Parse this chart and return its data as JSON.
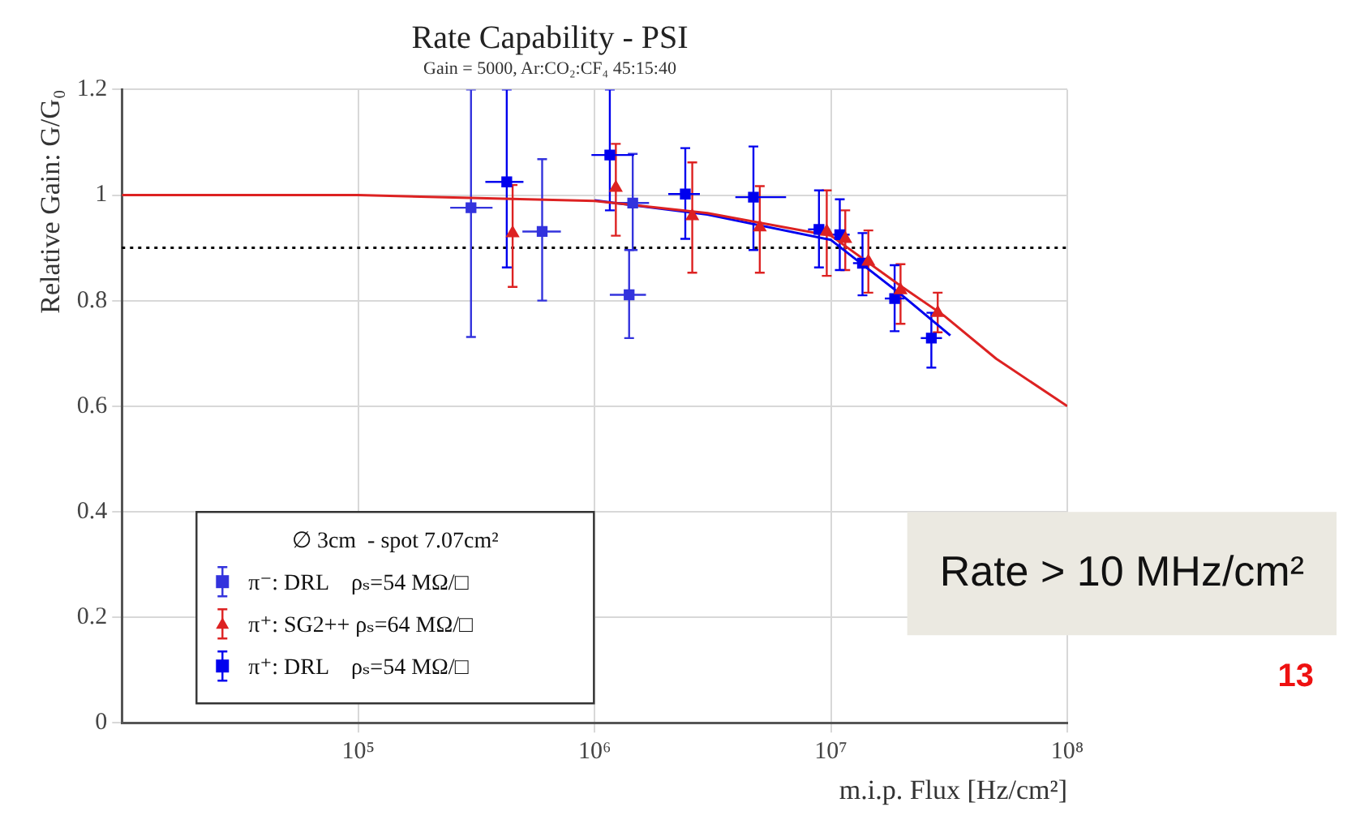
{
  "chart_data": {
    "type": "scatter",
    "title": "Rate Capability - PSI",
    "subtitle": "Gain = 5000, Ar:CO₂:CF₄ 45:15:40",
    "xlabel": "m.i.p. Flux [Hz/cm²]",
    "ylabel": "Relative Gain: G/G₀",
    "legend_title": "∅ 3cm  - spot 7.07cm²",
    "log": "x",
    "grid": true,
    "legend": "bottom left",
    "xlim": [
      10000,
      100000000
    ],
    "xticks": [
      {
        "value": 100000,
        "label": "10⁵"
      },
      {
        "value": 1000000,
        "label": "10⁶"
      },
      {
        "value": 10000000,
        "label": "10⁷"
      },
      {
        "value": 100000000,
        "label": "10⁸"
      }
    ],
    "ylim": [
      0,
      1.2
    ],
    "yticks": [
      0,
      0.2,
      0.4,
      0.6,
      0.8,
      1,
      1.2
    ],
    "ref_lines": [
      {
        "axis": "y",
        "value": 0.9,
        "color": "#000000",
        "line_style": "dotted"
      }
    ],
    "annotations": [
      "Rate > 10 MHz/cm²",
      "13"
    ],
    "series": [
      {
        "name": "π⁻: DRL    ρₛ=54 MΩ/□",
        "color": "#3333dd",
        "marker": "square",
        "x": [
          300000,
          600000,
          1450000,
          1400000
        ],
        "values": [
          0.976,
          0.931,
          0.985,
          0.811
        ],
        "errors": [
          [
            0.731,
            1.2
          ],
          [
            0.8,
            1.068
          ],
          [
            0.896,
            1.078
          ],
          [
            0.729,
            0.896
          ]
        ],
        "xerrors": [
          [
            245000,
            370000
          ],
          [
            495000,
            720000
          ],
          [
            1190000,
            1700000
          ],
          [
            1160000,
            1650000
          ]
        ]
      },
      {
        "name": "π⁺: SG2++ ρₛ=64 MΩ/□",
        "color": "#dd2222",
        "marker": "triangle",
        "x": [
          450000,
          1230000,
          2590000,
          5000000,
          9600000,
          11500000,
          14400000,
          19700000,
          28300000
        ],
        "values": [
          0.928,
          1.014,
          0.96,
          0.939,
          0.931,
          0.917,
          0.874,
          0.82,
          0.777
        ],
        "errors": [
          [
            0.826,
            1.019
          ],
          [
            0.923,
            1.097
          ],
          [
            0.853,
            1.062
          ],
          [
            0.853,
            1.017
          ],
          [
            0.847,
            1.009
          ],
          [
            0.858,
            0.971
          ],
          [
            0.815,
            0.933
          ],
          [
            0.756,
            0.869
          ],
          [
            0.74,
            0.815
          ]
        ]
      },
      {
        "name": "π⁺: DRL    ρₛ=54 MΩ/□",
        "color": "#0000ee",
        "marker": "square",
        "x": [
          425000,
          1160000,
          2420000,
          4700000,
          8900000,
          10900000,
          13600000,
          18600000,
          26600000
        ],
        "values": [
          1.025,
          1.076,
          1.002,
          0.996,
          0.935,
          0.925,
          0.871,
          0.804,
          0.729
        ],
        "errors": [
          [
            0.863,
            1.2
          ],
          [
            0.971,
            1.2
          ],
          [
            0.917,
            1.089
          ],
          [
            0.896,
            1.092
          ],
          [
            0.863,
            1.009
          ],
          [
            0.858,
            0.992
          ],
          [
            0.81,
            0.928
          ],
          [
            0.742,
            0.867
          ],
          [
            0.673,
            0.777
          ]
        ],
        "xerrors": [
          [
            345000,
            500000
          ],
          [
            970000,
            1470000
          ],
          [
            2050000,
            2790000
          ],
          [
            3940000,
            6460000
          ],
          [
            8000000,
            9900000
          ],
          [
            9900000,
            12000000
          ],
          [
            12400000,
            15000000
          ],
          [
            16900000,
            20500000
          ],
          [
            24000000,
            29500000
          ]
        ]
      },
      {
        "type": "line",
        "color": "#dd2222",
        "marker": "none",
        "x": [
          10000,
          100000,
          1000000,
          3000000,
          10000000,
          20000000,
          30000000,
          50000000,
          100000000
        ],
        "values": [
          1.0,
          1.0,
          0.989,
          0.966,
          0.923,
          0.826,
          0.772,
          0.69,
          0.6
        ]
      },
      {
        "type": "line",
        "color": "#0000ee",
        "marker": "none",
        "x": [
          1000000,
          3000000,
          10000000,
          20000000,
          32000000
        ],
        "values": [
          0.99,
          0.963,
          0.915,
          0.81,
          0.734
        ]
      }
    ]
  }
}
